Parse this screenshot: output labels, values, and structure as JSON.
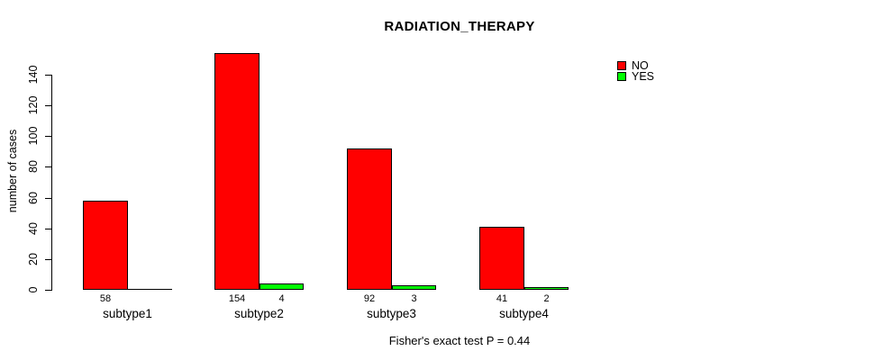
{
  "chart_data": {
    "type": "bar",
    "title": "RADIATION_THERAPY",
    "ylabel": "number of cases",
    "xlabel": "",
    "annotation": "Fisher's exact test P = 0.44",
    "categories": [
      "subtype1",
      "subtype2",
      "subtype3",
      "subtype4"
    ],
    "series": [
      {
        "name": "NO",
        "color": "#ff0000",
        "values": [
          58,
          154,
          92,
          41
        ],
        "value_labels": [
          "58",
          "154",
          "92",
          "41"
        ]
      },
      {
        "name": "YES",
        "color": "#00ff00",
        "values": [
          0,
          4,
          3,
          2
        ],
        "value_labels": [
          "",
          "4",
          "3",
          "2"
        ]
      }
    ],
    "yticks": [
      0,
      20,
      40,
      60,
      80,
      100,
      120,
      140
    ],
    "ylim": [
      0,
      154
    ],
    "grid": false,
    "legend_position": "top-right",
    "background": "#ffffff",
    "text_color": "#000000"
  }
}
